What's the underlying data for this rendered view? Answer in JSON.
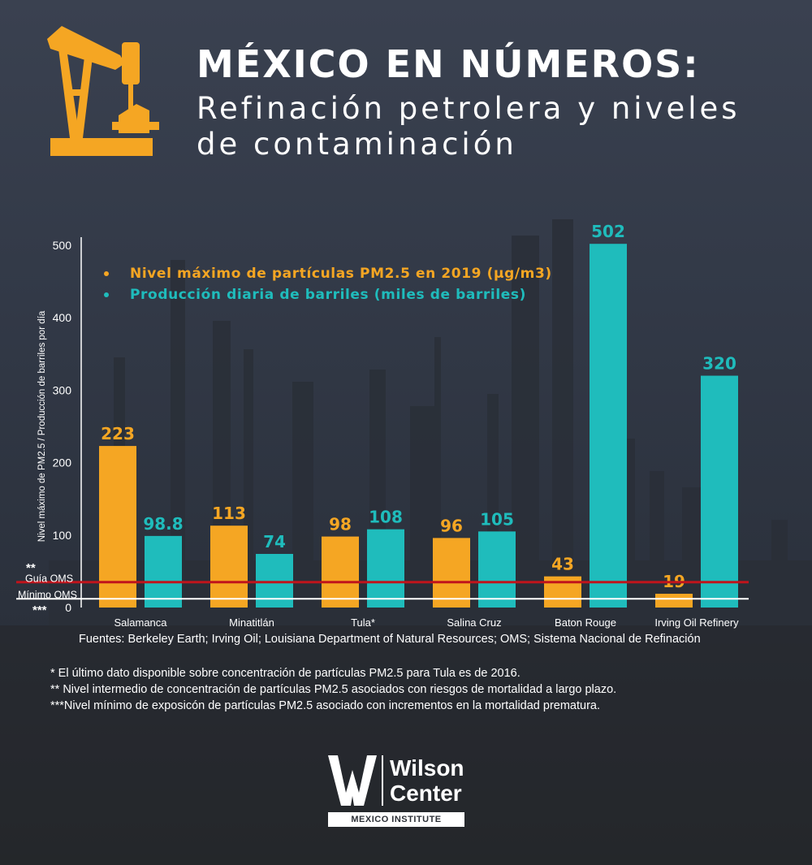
{
  "header": {
    "title": "MÉXICO EN NÚMEROS:",
    "subtitle": "Refinación petrolera y niveles de contaminación"
  },
  "chart_data": {
    "type": "bar",
    "ylabel": "Nivel máximo de PM2.5 / Producción de barriles por día",
    "ylim": [
      0,
      500
    ],
    "yticks": [
      0,
      100,
      200,
      300,
      400,
      500
    ],
    "categories": [
      "Salamanca",
      "Minatitlán",
      "Tula*",
      "Salina Cruz",
      "Baton Rouge",
      "Irving Oil Refinery"
    ],
    "series": [
      {
        "name": "Nivel máximo de partículas PM2.5 en 2019 (µg/m3)",
        "color": "#f5a623",
        "values": [
          223,
          113,
          98,
          96,
          43,
          19
        ],
        "labels": [
          "223",
          "113",
          "98",
          "96",
          "43",
          "19"
        ]
      },
      {
        "name": "Producción diaria de barriles (miles de barriles)",
        "color": "#1fbcbc",
        "values": [
          98.8,
          74,
          108,
          105,
          502,
          320
        ],
        "labels": [
          "98.8",
          "74",
          "108",
          "105",
          "502",
          "320"
        ]
      }
    ],
    "reference_lines": [
      {
        "name": "Guía OMS",
        "marker": "**",
        "value": 35,
        "color": "#c0141c"
      },
      {
        "name": "Mínimo OMS",
        "marker": "***",
        "value": 12,
        "color": "#ffffff"
      }
    ],
    "legend_position": "top-left"
  },
  "footer": {
    "sources": "Fuentes:  Berkeley Earth; Irving Oil;  Louisiana Department of Natural Resources; OMS; Sistema Nacional de Refinación",
    "notes": [
      "*  El último dato disponible sobre concentración de partículas PM2.5 para Tula es de 2016.",
      "** Nivel intermedio de concentración de partículas PM2.5 asociados con riesgos de mortalidad a largo plazo.",
      "***Nivel mínimo de exposicón de partículas PM2.5 asociado con incrementos en la mortalidad prematura."
    ]
  },
  "logo": {
    "line1": "Wilson",
    "line2": "Center",
    "institute": "MEXICO INSTITUTE"
  },
  "colors": {
    "accent_orange": "#f5a623",
    "accent_teal": "#1fbcbc"
  }
}
